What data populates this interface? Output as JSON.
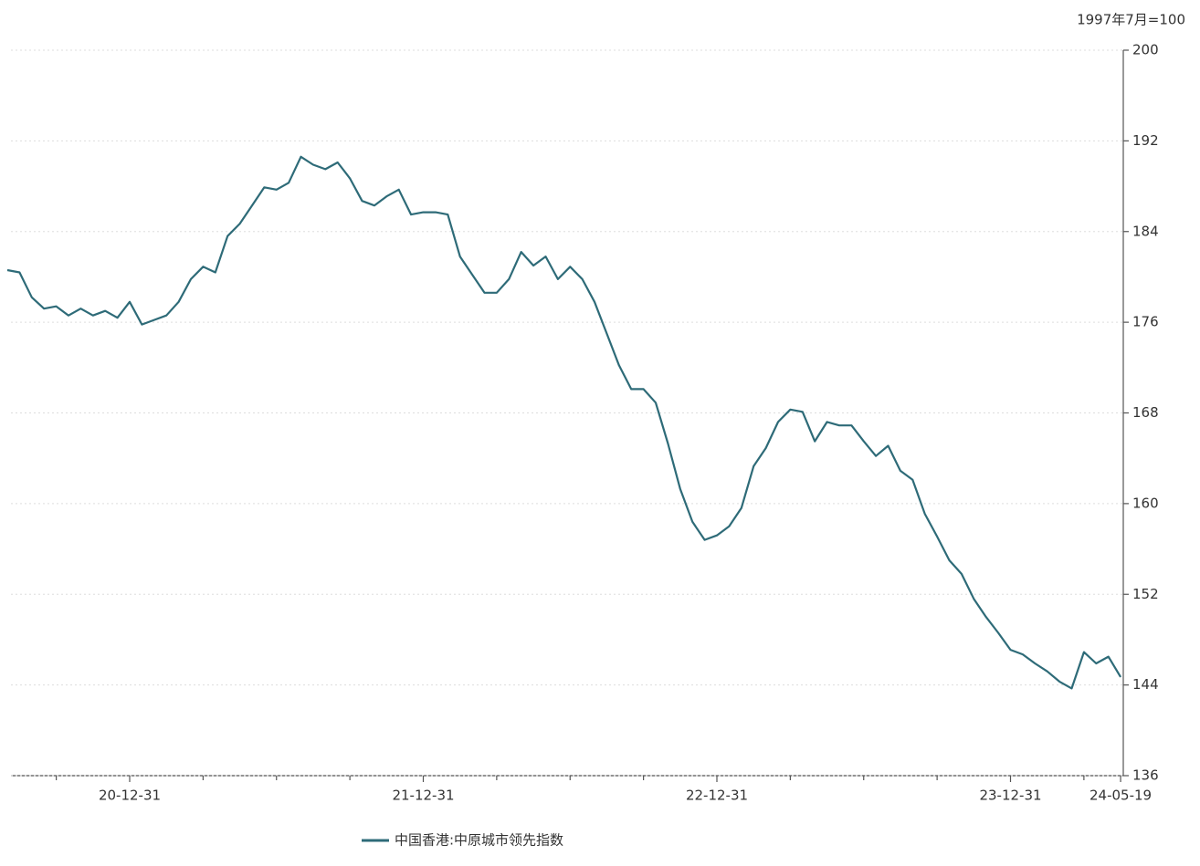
{
  "chart_data": {
    "type": "line",
    "unit_label": "1997年7月=100",
    "categories": [
      null,
      null,
      null,
      null,
      null,
      null,
      null,
      null,
      null,
      null,
      "20-12-31",
      null,
      null,
      null,
      null,
      null,
      null,
      null,
      null,
      null,
      null,
      null,
      null,
      null,
      null,
      null,
      null,
      null,
      null,
      null,
      null,
      null,
      null,
      null,
      "21-12-31",
      null,
      null,
      null,
      null,
      null,
      null,
      null,
      null,
      null,
      null,
      null,
      null,
      null,
      null,
      null,
      null,
      null,
      null,
      null,
      null,
      null,
      null,
      null,
      "22-12-31",
      null,
      null,
      null,
      null,
      null,
      null,
      null,
      null,
      null,
      null,
      null,
      null,
      null,
      null,
      null,
      null,
      null,
      null,
      null,
      null,
      null,
      null,
      null,
      "23-12-31",
      null,
      null,
      null,
      null,
      null,
      null,
      null,
      null,
      "24-05-19"
    ],
    "series": [
      {
        "name": "中国香港:中原城市领先指数",
        "color": "#2e6b78",
        "values": [
          180.6,
          180.4,
          178.2,
          177.2,
          177.4,
          176.6,
          177.2,
          176.6,
          177.0,
          176.4,
          177.8,
          175.8,
          176.2,
          176.6,
          177.8,
          179.8,
          180.9,
          180.4,
          183.6,
          184.7,
          186.3,
          187.9,
          187.7,
          188.3,
          190.6,
          189.9,
          189.5,
          190.1,
          188.7,
          186.7,
          186.3,
          187.1,
          187.7,
          185.5,
          185.7,
          185.7,
          185.5,
          181.8,
          180.2,
          178.6,
          178.6,
          179.8,
          182.2,
          181.0,
          181.8,
          179.8,
          180.9,
          179.8,
          177.8,
          175.0,
          172.2,
          170.1,
          170.1,
          168.9,
          165.3,
          161.3,
          158.4,
          156.8,
          157.2,
          158.0,
          159.6,
          163.3,
          164.9,
          167.2,
          168.3,
          168.1,
          165.5,
          167.2,
          166.9,
          166.9,
          165.5,
          164.2,
          165.1,
          162.9,
          162.1,
          159.1,
          157.1,
          155.0,
          153.8,
          151.6,
          150.0,
          148.6,
          147.1,
          146.7,
          145.9,
          145.2,
          144.3,
          143.7,
          146.9,
          145.9,
          146.5,
          144.7
        ]
      }
    ],
    "ylim": [
      136,
      200
    ],
    "yticks": [
      136,
      144,
      152,
      160,
      168,
      176,
      184,
      192,
      200
    ],
    "grid": true
  }
}
